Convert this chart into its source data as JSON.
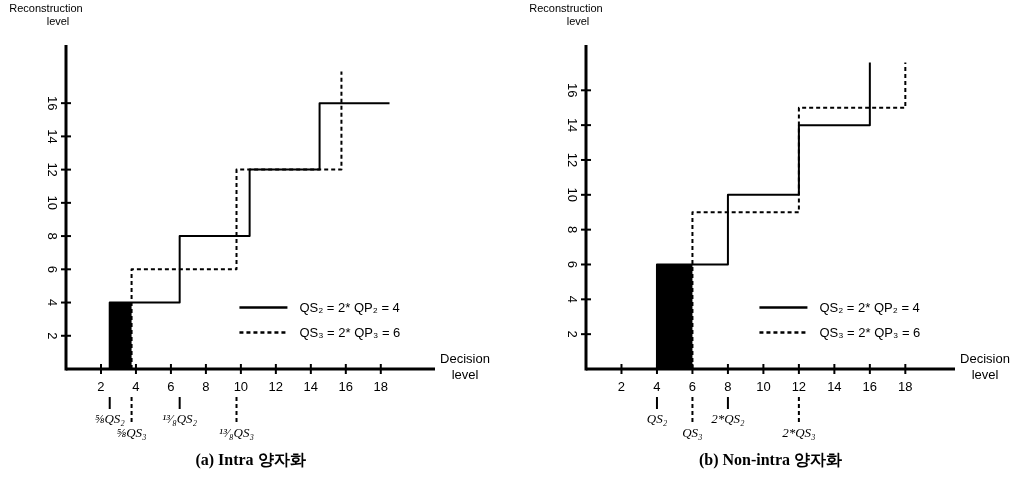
{
  "chart_data": [
    {
      "type": "step",
      "title": "(a)  Intra 양자화",
      "xlabel": "Decision level",
      "ylabel": "Reconstruction level",
      "xlim": [
        0,
        21.1
      ],
      "ylim": [
        0,
        19.5
      ],
      "xticks": [
        2,
        4,
        6,
        8,
        10,
        12,
        14,
        16,
        18
      ],
      "yticks": [
        2,
        4,
        6,
        8,
        10,
        12,
        14,
        16
      ],
      "grid": false,
      "legend": "right",
      "series": [
        {
          "type": "area",
          "color": "#000000",
          "x": [
            2.5,
            3.75
          ],
          "values": [
            4,
            4
          ]
        },
        {
          "name": "QS₂ = 2* QP₂ = 4",
          "color": "#000000",
          "line_style": "solid",
          "x": [
            2.5,
            2.5,
            6.5,
            10.5,
            14.5,
            18.5
          ],
          "values": [
            0,
            4,
            8,
            12,
            16,
            16
          ]
        },
        {
          "name": "QS₃ = 2* QP₃ = 6",
          "color": "#000000",
          "line_style": "dashed",
          "x": [
            3.75,
            3.75,
            9.75,
            15.75
          ],
          "values": [
            0,
            6,
            12,
            17.9
          ]
        }
      ],
      "annotations": [
        {
          "text": "⅝QS₂",
          "x": 2.5
        },
        {
          "text": "⅝QS₃",
          "x": 3.75
        },
        {
          "text": "¹³⁄₈QS₂",
          "x": 6.5
        },
        {
          "text": "¹³⁄₈QS₃",
          "x": 9.75
        }
      ]
    },
    {
      "type": "step",
      "title": "(b) Non-intra 양자화",
      "xlabel": "Decision level",
      "ylabel": "Reconstruction level",
      "xlim": [
        0,
        20.8
      ],
      "ylim": [
        0,
        18.6
      ],
      "xticks": [
        2,
        4,
        6,
        8,
        10,
        12,
        14,
        16,
        18
      ],
      "yticks": [
        2,
        4,
        6,
        8,
        10,
        12,
        14,
        16
      ],
      "grid": false,
      "legend": "right",
      "series": [
        {
          "type": "area",
          "color": "#000000",
          "x": [
            4,
            6
          ],
          "values": [
            6,
            6
          ]
        },
        {
          "name": "QS₂ = 2* QP₂ = 4",
          "color": "#000000",
          "line_style": "solid",
          "x": [
            4,
            4,
            8,
            12,
            16
          ],
          "values": [
            0,
            6,
            10,
            14,
            17.6
          ]
        },
        {
          "name": "QS₃ = 2* QP₃ = 6",
          "color": "#000000",
          "line_style": "dashed",
          "x": [
            6,
            6,
            12,
            18
          ],
          "values": [
            0,
            9,
            15,
            17.6
          ]
        }
      ],
      "annotations": [
        {
          "text": "QS₂",
          "x": 4
        },
        {
          "text": "QS₃",
          "x": 6
        },
        {
          "text": "2*QS₂",
          "x": 8
        },
        {
          "text": "2*QS₃",
          "x": 12
        }
      ]
    }
  ]
}
